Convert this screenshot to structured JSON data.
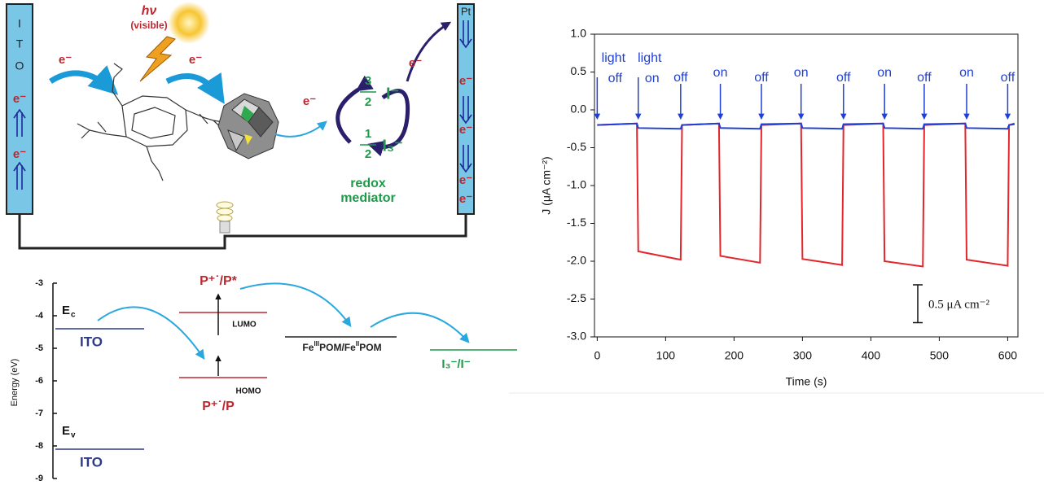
{
  "cell": {
    "anode_label": [
      "I",
      "T",
      "O"
    ],
    "anode_electrons": [
      "e⁻",
      "e⁻"
    ],
    "cathode_label": "Pt",
    "cathode_electrons": [
      "e⁻",
      "e⁻",
      "e⁻",
      "e⁻"
    ],
    "light": "hν",
    "light_note": "(visible)",
    "transfer_electrons": [
      "e⁻",
      "e⁻",
      "e⁻",
      "e⁻"
    ],
    "mediator_top": {
      "numerator": "3",
      "denominator": "2",
      "species": "I⁻"
    },
    "mediator_bottom": {
      "numerator": "1",
      "denominator": "2",
      "species": "I₃⁻"
    },
    "mediator_label": [
      "redox",
      "mediator"
    ]
  },
  "energy_diagram": {
    "ylabel": "Energy (eV)",
    "ylim": [
      -9,
      -3
    ],
    "yticks": [
      -3,
      -4,
      -5,
      -6,
      -7,
      -8,
      -9
    ],
    "levels": [
      {
        "energy": -4.4,
        "label": "ITO",
        "tag": "E",
        "tag_sub": "c",
        "color": "#2e3a87"
      },
      {
        "energy": -8.1,
        "label": "ITO",
        "tag": "E",
        "tag_sub": "v",
        "color": "#2e3a87"
      },
      {
        "energy": -3.9,
        "label": "LUMO",
        "state": "P⁺˙/P*",
        "color": "#c0262d"
      },
      {
        "energy": -5.9,
        "label": "HOMO",
        "state": "P⁺˙/P",
        "color": "#c0262d"
      },
      {
        "energy": -4.65,
        "parts": [
          {
            "text": "Fe"
          },
          {
            "text": "III",
            "style": "sup"
          },
          {
            "text": "POM/Fe"
          },
          {
            "text": "II",
            "style": "sup"
          },
          {
            "text": "POM"
          }
        ],
        "color": "#222222"
      },
      {
        "energy": -5.05,
        "label": "I₃⁻/I⁻",
        "color": "#1e9a4a"
      }
    ]
  },
  "chart_data": {
    "type": "line",
    "xlabel": "Time (s)",
    "ylabel": "J (μA cm⁻²)",
    "xlim": [
      -4,
      615
    ],
    "ylim": [
      -3.0,
      1.0
    ],
    "xticks": [
      0,
      100,
      200,
      300,
      400,
      500,
      600
    ],
    "yticks": [
      {
        "value": 1.0,
        "label": "1.0"
      },
      0.5,
      {
        "value": 0.0,
        "label": "0.0"
      },
      -0.5,
      {
        "value": -1.0,
        "label": "-1.0"
      },
      -1.5,
      {
        "value": -2.0,
        "label": "-2.0"
      },
      -2.5,
      {
        "value": -3.0,
        "label": "-3.0"
      }
    ],
    "x": [
      0,
      58,
      60,
      122,
      124,
      178,
      180,
      238,
      240,
      298,
      300,
      358,
      360,
      418,
      420,
      476,
      478,
      538,
      540,
      600,
      602,
      610
    ],
    "series": [
      {
        "name": "red",
        "color": "#e3262b",
        "values": [
          -0.2,
          -0.18,
          -1.87,
          -1.98,
          -0.2,
          -0.18,
          -1.93,
          -2.02,
          -0.2,
          -0.18,
          -1.97,
          -2.05,
          -0.2,
          -0.18,
          -2.0,
          -2.07,
          -0.2,
          -0.18,
          -1.98,
          -2.06,
          -0.2,
          -0.18
        ]
      },
      {
        "name": "blue",
        "color": "#1f3fd6",
        "values": [
          -0.2,
          -0.18,
          -0.24,
          -0.25,
          -0.2,
          -0.18,
          -0.24,
          -0.25,
          -0.19,
          -0.18,
          -0.24,
          -0.25,
          -0.19,
          -0.18,
          -0.24,
          -0.25,
          -0.19,
          -0.18,
          -0.24,
          -0.25,
          -0.2,
          -0.19
        ]
      }
    ],
    "annotations": [
      {
        "lines": [
          "light",
          "off"
        ],
        "x": 0
      },
      {
        "lines": [
          "light",
          "on"
        ],
        "x": 60
      },
      {
        "lines": [
          "off"
        ],
        "x": 122
      },
      {
        "lines": [
          "on"
        ],
        "x": 180
      },
      {
        "lines": [
          "off"
        ],
        "x": 240
      },
      {
        "lines": [
          "on"
        ],
        "x": 298
      },
      {
        "lines": [
          "off"
        ],
        "x": 360
      },
      {
        "lines": [
          "on"
        ],
        "x": 420
      },
      {
        "lines": [
          "off"
        ],
        "x": 478
      },
      {
        "lines": [
          "on"
        ],
        "x": 540
      },
      {
        "lines": [
          "off"
        ],
        "x": 600
      }
    ],
    "annotation_color": "#1f3fd6",
    "scale_bar": {
      "value": 0.5,
      "label": "0.5 μA cm⁻²"
    }
  }
}
